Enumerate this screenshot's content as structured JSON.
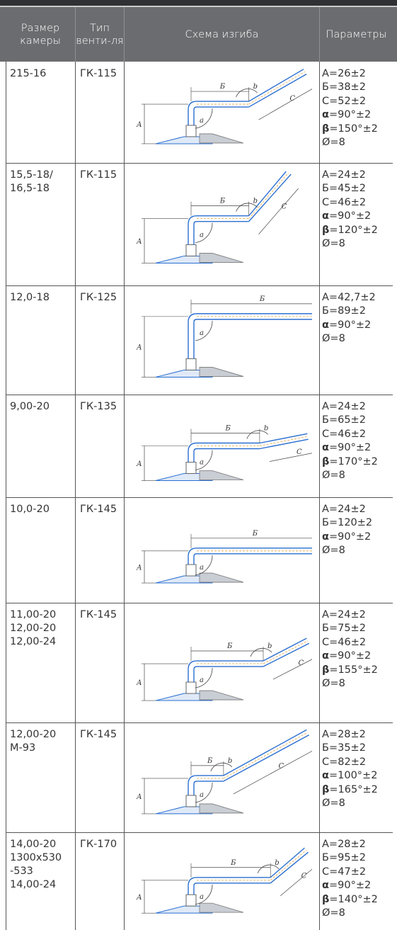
{
  "header": {
    "col_size": "Размер камеры",
    "col_valve": "Тип венти-ля",
    "col_scheme": "Схема изгиба",
    "col_params": "Параметры"
  },
  "rows": [
    {
      "size": "215-16",
      "valve": "ГК-115",
      "params": [
        {
          "k": "A",
          "v": "=26±2"
        },
        {
          "k": "Б",
          "v": "=38±2"
        },
        {
          "k": "С",
          "v": "=52±2"
        },
        {
          "k": "α",
          "v": "=90°±2",
          "greek": true
        },
        {
          "k": "β",
          "v": "=150°±2",
          "greek": true
        },
        {
          "k": "Ø",
          "v": "=8"
        }
      ],
      "labels": {
        "a": "А",
        "b": "Б",
        "c": "С",
        "alpha": "а",
        "beta": "b"
      }
    },
    {
      "size": "15,5-18/\n16,5-18",
      "valve": "ГК-115",
      "params": [
        {
          "k": "A",
          "v": "=24±2"
        },
        {
          "k": "Б",
          "v": "=45±2"
        },
        {
          "k": "С",
          "v": "=46±2"
        },
        {
          "k": "α",
          "v": "=90°±2",
          "greek": true
        },
        {
          "k": "β",
          "v": "=120°±2",
          "greek": true
        },
        {
          "k": "Ø",
          "v": "=8"
        }
      ],
      "labels": {
        "a": "А",
        "b": "Б",
        "c": "С",
        "alpha": "а",
        "beta": "b"
      }
    },
    {
      "size": "12,0-18",
      "valve": "ГК-125",
      "params": [
        {
          "k": "A",
          "v": "=42,7±2"
        },
        {
          "k": "Б",
          "v": "=89±2"
        },
        {
          "k": "α",
          "v": "=90°±2",
          "greek": true
        },
        {
          "k": "Ø",
          "v": "=8"
        }
      ],
      "labels": {
        "a": "А",
        "b": "Б",
        "alpha": "а"
      }
    },
    {
      "size": "9,00-20",
      "valve": "ГК-135",
      "params": [
        {
          "k": "A",
          "v": "=24±2"
        },
        {
          "k": "Б",
          "v": "=65±2"
        },
        {
          "k": "С",
          "v": "=46±2"
        },
        {
          "k": "α",
          "v": "=90°±2",
          "greek": true
        },
        {
          "k": "β",
          "v": "=170°±2",
          "greek": true
        },
        {
          "k": "Ø",
          "v": "=8"
        }
      ],
      "labels": {
        "a": "А",
        "b": "Б",
        "c": "С",
        "alpha": "а",
        "beta": "b"
      }
    },
    {
      "size": "10,0-20",
      "valve": "ГК-145",
      "params": [
        {
          "k": "A",
          "v": "=24±2"
        },
        {
          "k": "Б",
          "v": "=120±2"
        },
        {
          "k": "α",
          "v": "=90°±2",
          "greek": true
        },
        {
          "k": "Ø",
          "v": "=8"
        }
      ],
      "labels": {
        "a": "А",
        "b": "Б",
        "alpha": "а"
      }
    },
    {
      "size": "11,00-20\n12,00-20\n12,00-24",
      "valve": "ГК-145",
      "params": [
        {
          "k": "A",
          "v": "=24±2"
        },
        {
          "k": "Б",
          "v": "=75±2"
        },
        {
          "k": "С",
          "v": "=46±2"
        },
        {
          "k": "α",
          "v": "=90°±2",
          "greek": true
        },
        {
          "k": "β",
          "v": "=155°±2",
          "greek": true
        },
        {
          "k": "Ø",
          "v": "=8"
        }
      ],
      "labels": {
        "a": "А",
        "b": "Б",
        "c": "С",
        "alpha": "а",
        "beta": "b"
      }
    },
    {
      "size": "12,00-20\n М-93",
      "valve": "ГК-145",
      "params": [
        {
          "k": "A",
          "v": "=28±2"
        },
        {
          "k": "Б",
          "v": "=35±2"
        },
        {
          "k": "С",
          "v": "=82±2"
        },
        {
          "k": "α",
          "v": "=100°±2",
          "greek": true
        },
        {
          "k": "β",
          "v": "=165°±2",
          "greek": true
        },
        {
          "k": "Ø",
          "v": "=8"
        }
      ],
      "labels": {
        "a": "А",
        "b": "Б",
        "c": "С",
        "alpha": "а",
        "beta": "b"
      }
    },
    {
      "size": "14,00-20\n1300x530\n-533\n14,00-24",
      "valve": "ГК-170",
      "params": [
        {
          "k": "A",
          "v": "=28±2"
        },
        {
          "k": "Б",
          "v": "=95±2"
        },
        {
          "k": "С",
          "v": "=47±2"
        },
        {
          "k": "α",
          "v": "=90°±2",
          "greek": true
        },
        {
          "k": "β",
          "v": "=140°±2",
          "greek": true
        },
        {
          "k": "Ø",
          "v": "=8"
        }
      ],
      "labels": {
        "a": "А",
        "b": "Б",
        "c": "С",
        "alpha": "а",
        "beta": "b"
      }
    }
  ],
  "colors": {
    "header_bg": "#6b6c6f",
    "topbar": "#2f3033",
    "pipe": "#2a6fd1",
    "pipe_accent": "#e8a33a",
    "line": "#555555"
  }
}
